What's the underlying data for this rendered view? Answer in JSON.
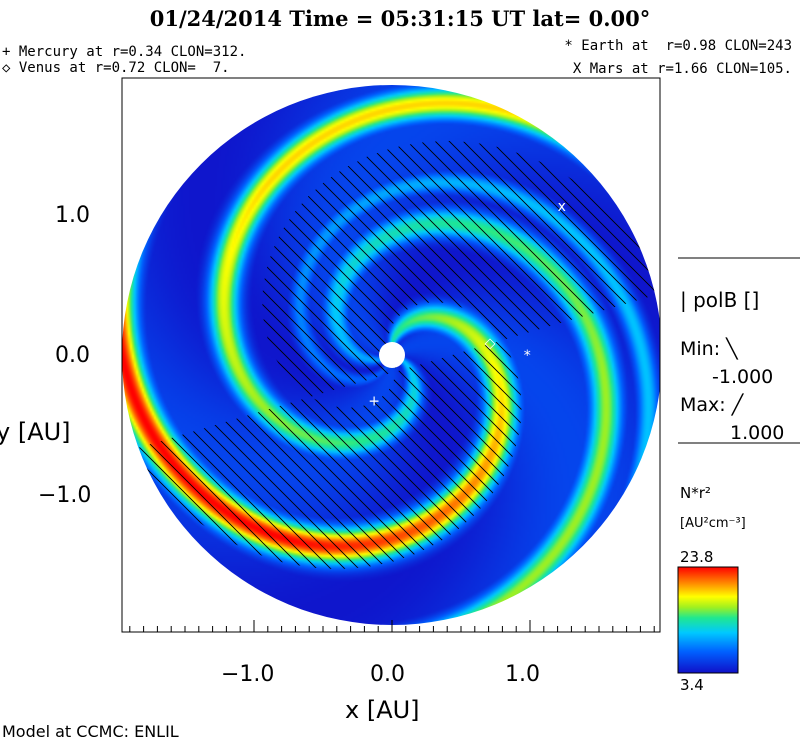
{
  "title": "01/24/2014 Time = 05:31:15 UT lat= 0.00°",
  "planets": {
    "mercury": "+ Mercury at r=0.34 CLON=312.",
    "venus": "◇ Venus at r=0.72 CLON=  7.",
    "earth": "* Earth at  r=0.98 CLON=243",
    "mars": "X Mars at r=1.66 CLON=105."
  },
  "legend": {
    "polarity_title": "| polB []",
    "min_label": "Min: ╲",
    "min_value": "-1.000",
    "max_label": "Max: ╱",
    "max_value": "1.000",
    "colorbar_title": "N*r²",
    "colorbar_units": "[AU²cm⁻³]",
    "colorbar_max": "23.8",
    "colorbar_min": "3.4"
  },
  "footer": "Model at CCMC: ENLIL",
  "colors": {
    "bg_blue": "#1d38d6",
    "deep_blue": "#0a10b0",
    "cyan": "#00b8ff",
    "green": "#30e060",
    "yellow": "#e8e800",
    "red": "#ff2a00"
  },
  "chart_data": {
    "type": "heatmap",
    "title": "01/24/2014 Time = 05:31:15 UT lat= 0.00°",
    "xlabel": "x [AU]",
    "ylabel": "y [AU]",
    "xlim": [
      -2.0,
      2.0
    ],
    "ylim": [
      -2.0,
      2.0
    ],
    "x_ticks": [
      -1.0,
      0.0,
      1.0
    ],
    "x_tick_labels": [
      "−1.0",
      "0.0",
      "1.0"
    ],
    "y_ticks": [
      -1.0,
      0.0,
      1.0
    ],
    "y_tick_labels": [
      "−1.0",
      "0.0",
      "1.0"
    ],
    "domain_radius_au": 2.0,
    "colorbar": {
      "quantity": "N*r²",
      "units": "[AU²cm⁻³]",
      "min": 3.4,
      "max": 23.8
    },
    "bodies": [
      {
        "name": "Sun",
        "x": 0.0,
        "y": 0.0,
        "marker": "disk"
      },
      {
        "name": "Mercury",
        "x": -0.13,
        "y": -0.33,
        "marker": "+"
      },
      {
        "name": "Venus",
        "x": 0.71,
        "y": 0.09,
        "marker": "◇"
      },
      {
        "name": "Earth",
        "x": 0.98,
        "y": 0.0,
        "marker": "*"
      },
      {
        "name": "Mars",
        "x": 1.23,
        "y": 1.08,
        "marker": "x"
      }
    ],
    "stream_arms": [
      {
        "theta0_deg": 100,
        "width_deg": 30,
        "peak": 23.8
      },
      {
        "theta0_deg": 215,
        "width_deg": 26,
        "peak": 16.0
      },
      {
        "theta0_deg": 345,
        "width_deg": 26,
        "peak": 19.0
      },
      {
        "theta0_deg": 260,
        "width_deg": 18,
        "peak": 11.0
      }
    ],
    "spiral_deg_per_au": 140,
    "polarity": {
      "min": -1.0,
      "max": 1.0,
      "negative_hatch": "╲",
      "positive_hatch": "╱"
    }
  }
}
